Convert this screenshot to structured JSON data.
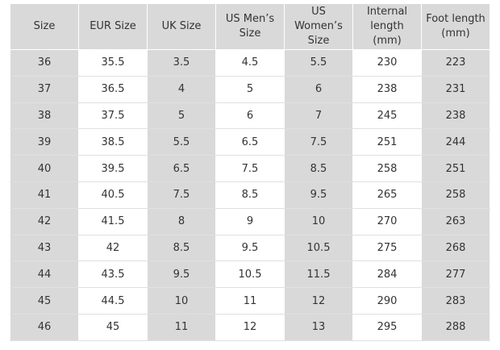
{
  "table": {
    "header": [
      "Size",
      "EUR Size",
      "UK Size",
      "US Men’s Size",
      "US Women’s Size",
      "Internal length (mm)",
      "Foot length (mm)"
    ],
    "rows": [
      [
        "36",
        "35.5",
        "3.5",
        "4.5",
        "5.5",
        "230",
        "223"
      ],
      [
        "37",
        "36.5",
        "4",
        "5",
        "6",
        "238",
        "231"
      ],
      [
        "38",
        "37.5",
        "5",
        "6",
        "7",
        "245",
        "238"
      ],
      [
        "39",
        "38.5",
        "5.5",
        "6.5",
        "7.5",
        "251",
        "244"
      ],
      [
        "40",
        "39.5",
        "6.5",
        "7.5",
        "8.5",
        "258",
        "251"
      ],
      [
        "41",
        "40.5",
        "7.5",
        "8.5",
        "9.5",
        "265",
        "258"
      ],
      [
        "42",
        "41.5",
        "8",
        "9",
        "10",
        "270",
        "263"
      ],
      [
        "43",
        "42",
        "8.5",
        "9.5",
        "10.5",
        "275",
        "268"
      ],
      [
        "44",
        "43.5",
        "9.5",
        "10.5",
        "11.5",
        "284",
        "277"
      ],
      [
        "45",
        "44.5",
        "10",
        "11",
        "12",
        "290",
        "283"
      ],
      [
        "46",
        "45",
        "11",
        "12",
        "13",
        "295",
        "288"
      ]
    ]
  }
}
